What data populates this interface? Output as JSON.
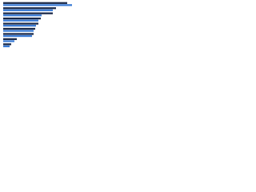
{
  "chart_data": {
    "type": "hbar",
    "categories": [
      null,
      null,
      null,
      null,
      null,
      null,
      null,
      null,
      null
    ],
    "series": [
      {
        "color": "#1b2a4a",
        "values": [
          80,
          66,
          62,
          47,
          44,
          40,
          38,
          17,
          10
        ]
      },
      {
        "color": "#3a7bd5",
        "values": [
          86,
          62,
          48,
          44,
          41,
          38,
          36,
          14,
          8
        ]
      }
    ],
    "xlim": [
      0,
      90
    ]
  }
}
